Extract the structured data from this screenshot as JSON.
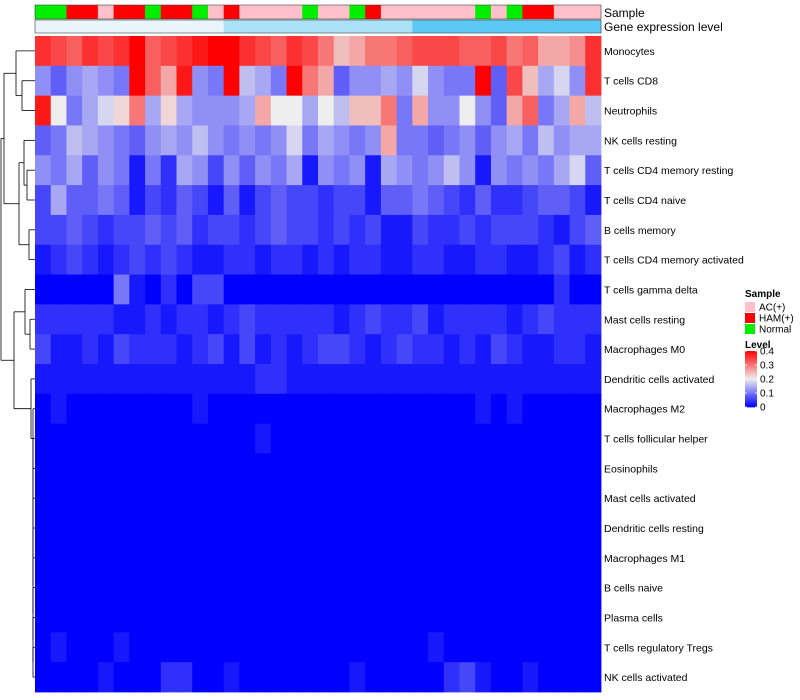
{
  "chart_data": {
    "type": "heatmap",
    "title": "",
    "annotation_labels": {
      "sample": "Sample",
      "expression": "Gene expression level"
    },
    "rows": [
      "Monocytes",
      "T cells CD8",
      "Neutrophils",
      "NK cells resting",
      "T cells CD4 memory resting",
      "T cells CD4 naive",
      "B cells memory",
      "T cells CD4 memory activated",
      "T cells gamma delta",
      "Mast cells resting",
      "Macrophages M0",
      "Dendritic cells activated",
      "Macrophages M2",
      "T cells follicular helper",
      "Eosinophils",
      "Mast cells activated",
      "Dendritic cells resting",
      "Macrophages M1",
      "B cells naive",
      "Plasma cells",
      "T cells regulatory  Tregs",
      "NK cells activated"
    ],
    "sample_groups": [
      "Normal",
      "Normal",
      "HAM(+)",
      "HAM(+)",
      "AC(+)",
      "HAM(+)",
      "HAM(+)",
      "Normal",
      "HAM(+)",
      "HAM(+)",
      "Normal",
      "AC(+)",
      "HAM(+)",
      "AC(+)",
      "AC(+)",
      "AC(+)",
      "AC(+)",
      "Normal",
      "AC(+)",
      "AC(+)",
      "Normal",
      "HAM(+)",
      "AC(+)",
      "AC(+)",
      "AC(+)",
      "AC(+)",
      "AC(+)",
      "AC(+)",
      "Normal",
      "AC(+)",
      "Normal",
      "HAM(+)",
      "HAM(+)",
      "AC(+)",
      "AC(+)",
      "AC(+)"
    ],
    "expression_row": [
      0.05,
      0.05,
      0.05,
      0.05,
      0.05,
      0.05,
      0.05,
      0.05,
      0.05,
      0.05,
      0.05,
      0.05,
      0.18,
      0.18,
      0.18,
      0.18,
      0.18,
      0.18,
      0.18,
      0.18,
      0.18,
      0.18,
      0.18,
      0.18,
      0.35,
      0.35,
      0.35,
      0.35,
      0.35,
      0.35,
      0.35,
      0.35,
      0.35,
      0.35,
      0.35,
      0.35
    ],
    "values": [
      [
        0.36,
        0.34,
        0.32,
        0.36,
        0.34,
        0.36,
        0.4,
        0.32,
        0.34,
        0.36,
        0.38,
        0.4,
        0.4,
        0.36,
        0.34,
        0.32,
        0.36,
        0.34,
        0.3,
        0.24,
        0.26,
        0.3,
        0.3,
        0.32,
        0.34,
        0.34,
        0.34,
        0.32,
        0.32,
        0.34,
        0.3,
        0.32,
        0.26,
        0.26,
        0.28,
        0.36
      ],
      [
        0.12,
        0.08,
        0.12,
        0.14,
        0.12,
        0.1,
        0.4,
        0.32,
        0.26,
        0.38,
        0.12,
        0.1,
        0.4,
        0.16,
        0.14,
        0.1,
        0.4,
        0.3,
        0.26,
        0.08,
        0.12,
        0.12,
        0.14,
        0.12,
        0.18,
        0.12,
        0.1,
        0.1,
        0.4,
        0.08,
        0.34,
        0.24,
        0.14,
        0.18,
        0.12,
        0.36
      ],
      [
        0.38,
        0.2,
        0.1,
        0.14,
        0.18,
        0.22,
        0.3,
        0.14,
        0.22,
        0.14,
        0.12,
        0.12,
        0.12,
        0.14,
        0.26,
        0.2,
        0.2,
        0.14,
        0.2,
        0.16,
        0.24,
        0.24,
        0.3,
        0.1,
        0.26,
        0.12,
        0.12,
        0.2,
        0.12,
        0.08,
        0.26,
        0.32,
        0.1,
        0.14,
        0.26,
        0.16
      ],
      [
        0.08,
        0.1,
        0.16,
        0.14,
        0.12,
        0.1,
        0.08,
        0.12,
        0.14,
        0.12,
        0.16,
        0.12,
        0.1,
        0.12,
        0.1,
        0.12,
        0.18,
        0.1,
        0.14,
        0.12,
        0.1,
        0.12,
        0.26,
        0.1,
        0.1,
        0.08,
        0.1,
        0.12,
        0.08,
        0.12,
        0.14,
        0.1,
        0.16,
        0.12,
        0.14,
        0.14
      ],
      [
        0.12,
        0.1,
        0.14,
        0.08,
        0.12,
        0.1,
        0.02,
        0.1,
        0.04,
        0.14,
        0.12,
        0.06,
        0.12,
        0.08,
        0.12,
        0.1,
        0.14,
        0.02,
        0.12,
        0.1,
        0.12,
        0.02,
        0.14,
        0.12,
        0.1,
        0.12,
        0.16,
        0.12,
        0.02,
        0.12,
        0.1,
        0.12,
        0.1,
        0.14,
        0.18,
        0.08
      ],
      [
        0.06,
        0.14,
        0.08,
        0.08,
        0.1,
        0.08,
        0.02,
        0.06,
        0.04,
        0.08,
        0.06,
        0.02,
        0.08,
        0.02,
        0.06,
        0.08,
        0.06,
        0.06,
        0.04,
        0.06,
        0.06,
        0.02,
        0.08,
        0.08,
        0.1,
        0.08,
        0.06,
        0.04,
        0.08,
        0.04,
        0.04,
        0.06,
        0.08,
        0.08,
        0.06,
        0.02
      ],
      [
        0.06,
        0.06,
        0.08,
        0.06,
        0.04,
        0.06,
        0.06,
        0.08,
        0.06,
        0.08,
        0.04,
        0.06,
        0.06,
        0.04,
        0.06,
        0.08,
        0.06,
        0.06,
        0.04,
        0.06,
        0.04,
        0.06,
        0.02,
        0.02,
        0.06,
        0.04,
        0.04,
        0.06,
        0.04,
        0.06,
        0.06,
        0.06,
        0.04,
        0.02,
        0.06,
        0.08
      ],
      [
        0.02,
        0.04,
        0.06,
        0.04,
        0.02,
        0.04,
        0.06,
        0.04,
        0.06,
        0.04,
        0.02,
        0.02,
        0.04,
        0.04,
        0.02,
        0.04,
        0.04,
        0.02,
        0.04,
        0.02,
        0.04,
        0.04,
        0.02,
        0.02,
        0.04,
        0.04,
        0.02,
        0.02,
        0.04,
        0.04,
        0.02,
        0.02,
        0.04,
        0.06,
        0.02,
        0.04
      ],
      [
        0.0,
        0.0,
        0.0,
        0.0,
        0.0,
        0.1,
        0.02,
        0.0,
        0.04,
        0.0,
        0.06,
        0.06,
        0.0,
        0.0,
        0.0,
        0.0,
        0.0,
        0.0,
        0.0,
        0.0,
        0.0,
        0.0,
        0.0,
        0.0,
        0.0,
        0.0,
        0.0,
        0.0,
        0.0,
        0.0,
        0.0,
        0.0,
        0.0,
        0.04,
        0.0,
        0.0
      ],
      [
        0.04,
        0.04,
        0.04,
        0.04,
        0.04,
        0.02,
        0.02,
        0.04,
        0.02,
        0.04,
        0.04,
        0.02,
        0.04,
        0.06,
        0.04,
        0.04,
        0.04,
        0.04,
        0.04,
        0.02,
        0.04,
        0.06,
        0.04,
        0.04,
        0.06,
        0.02,
        0.04,
        0.04,
        0.04,
        0.04,
        0.02,
        0.04,
        0.06,
        0.04,
        0.04,
        0.04
      ],
      [
        0.06,
        0.02,
        0.02,
        0.04,
        0.02,
        0.06,
        0.04,
        0.04,
        0.04,
        0.02,
        0.04,
        0.06,
        0.02,
        0.06,
        0.02,
        0.04,
        0.02,
        0.04,
        0.06,
        0.06,
        0.04,
        0.02,
        0.04,
        0.06,
        0.04,
        0.04,
        0.02,
        0.04,
        0.02,
        0.06,
        0.04,
        0.02,
        0.02,
        0.04,
        0.04,
        0.02
      ],
      [
        0.02,
        0.02,
        0.02,
        0.02,
        0.02,
        0.02,
        0.02,
        0.02,
        0.02,
        0.02,
        0.02,
        0.02,
        0.02,
        0.02,
        0.04,
        0.04,
        0.02,
        0.02,
        0.02,
        0.02,
        0.02,
        0.02,
        0.02,
        0.02,
        0.02,
        0.02,
        0.02,
        0.02,
        0.02,
        0.02,
        0.02,
        0.02,
        0.02,
        0.02,
        0.02,
        0.02
      ],
      [
        0.0,
        0.02,
        0.0,
        0.0,
        0.0,
        0.0,
        0.0,
        0.0,
        0.0,
        0.0,
        0.02,
        0.0,
        0.0,
        0.0,
        0.0,
        0.0,
        0.0,
        0.0,
        0.0,
        0.0,
        0.0,
        0.0,
        0.0,
        0.0,
        0.0,
        0.0,
        0.0,
        0.0,
        0.02,
        0.0,
        0.02,
        0.0,
        0.0,
        0.0,
        0.0,
        0.0
      ],
      [
        0.0,
        0.0,
        0.0,
        0.0,
        0.0,
        0.0,
        0.0,
        0.0,
        0.0,
        0.0,
        0.0,
        0.0,
        0.0,
        0.0,
        0.02,
        0.0,
        0.0,
        0.0,
        0.0,
        0.0,
        0.0,
        0.0,
        0.0,
        0.0,
        0.0,
        0.0,
        0.0,
        0.0,
        0.0,
        0.0,
        0.0,
        0.0,
        0.0,
        0.0,
        0.0,
        0.0
      ],
      [
        0.0,
        0.0,
        0.0,
        0.0,
        0.0,
        0.0,
        0.0,
        0.0,
        0.0,
        0.0,
        0.0,
        0.0,
        0.0,
        0.0,
        0.0,
        0.0,
        0.0,
        0.0,
        0.0,
        0.0,
        0.0,
        0.0,
        0.0,
        0.0,
        0.0,
        0.0,
        0.0,
        0.0,
        0.0,
        0.0,
        0.0,
        0.0,
        0.0,
        0.0,
        0.0,
        0.0
      ],
      [
        0.0,
        0.0,
        0.0,
        0.0,
        0.0,
        0.0,
        0.0,
        0.0,
        0.0,
        0.0,
        0.0,
        0.0,
        0.0,
        0.0,
        0.0,
        0.0,
        0.0,
        0.0,
        0.0,
        0.0,
        0.0,
        0.0,
        0.0,
        0.0,
        0.0,
        0.0,
        0.0,
        0.0,
        0.0,
        0.0,
        0.0,
        0.0,
        0.0,
        0.0,
        0.0,
        0.0
      ],
      [
        0.0,
        0.0,
        0.0,
        0.0,
        0.0,
        0.0,
        0.0,
        0.0,
        0.0,
        0.0,
        0.0,
        0.0,
        0.0,
        0.0,
        0.0,
        0.0,
        0.0,
        0.0,
        0.0,
        0.0,
        0.0,
        0.0,
        0.0,
        0.0,
        0.0,
        0.0,
        0.0,
        0.0,
        0.0,
        0.0,
        0.0,
        0.0,
        0.0,
        0.0,
        0.0,
        0.0
      ],
      [
        0.0,
        0.0,
        0.0,
        0.0,
        0.0,
        0.0,
        0.0,
        0.0,
        0.0,
        0.0,
        0.0,
        0.0,
        0.0,
        0.0,
        0.0,
        0.0,
        0.0,
        0.0,
        0.0,
        0.0,
        0.0,
        0.0,
        0.0,
        0.0,
        0.0,
        0.0,
        0.0,
        0.0,
        0.0,
        0.0,
        0.0,
        0.0,
        0.0,
        0.0,
        0.0,
        0.0
      ],
      [
        0.0,
        0.0,
        0.0,
        0.0,
        0.0,
        0.0,
        0.0,
        0.0,
        0.0,
        0.0,
        0.0,
        0.0,
        0.0,
        0.0,
        0.0,
        0.0,
        0.0,
        0.0,
        0.0,
        0.0,
        0.0,
        0.0,
        0.0,
        0.0,
        0.0,
        0.0,
        0.0,
        0.0,
        0.0,
        0.0,
        0.0,
        0.0,
        0.0,
        0.0,
        0.0,
        0.0
      ],
      [
        0.0,
        0.0,
        0.0,
        0.0,
        0.0,
        0.0,
        0.0,
        0.0,
        0.0,
        0.0,
        0.0,
        0.0,
        0.0,
        0.0,
        0.0,
        0.0,
        0.0,
        0.0,
        0.0,
        0.0,
        0.0,
        0.0,
        0.0,
        0.0,
        0.0,
        0.0,
        0.0,
        0.0,
        0.0,
        0.0,
        0.0,
        0.0,
        0.0,
        0.0,
        0.0,
        0.0
      ],
      [
        0.0,
        0.02,
        0.0,
        0.0,
        0.0,
        0.02,
        0.0,
        0.0,
        0.0,
        0.0,
        0.0,
        0.0,
        0.0,
        0.0,
        0.0,
        0.0,
        0.0,
        0.0,
        0.0,
        0.0,
        0.0,
        0.0,
        0.0,
        0.0,
        0.0,
        0.02,
        0.0,
        0.0,
        0.0,
        0.0,
        0.0,
        0.0,
        0.0,
        0.0,
        0.0,
        0.0
      ],
      [
        0.0,
        0.0,
        0.0,
        0.0,
        0.02,
        0.0,
        0.0,
        0.0,
        0.04,
        0.04,
        0.0,
        0.0,
        0.02,
        0.0,
        0.0,
        0.0,
        0.0,
        0.0,
        0.0,
        0.0,
        0.02,
        0.0,
        0.0,
        0.0,
        0.0,
        0.0,
        0.04,
        0.06,
        0.02,
        0.0,
        0.0,
        0.02,
        0.0,
        0.0,
        0.0,
        0.0
      ]
    ],
    "legend": {
      "sample_title": "Sample",
      "sample_entries": [
        {
          "label": "AC(+)",
          "color": "#ffc0cb"
        },
        {
          "label": "HAM(+)",
          "color": "#ff0000"
        },
        {
          "label": "Normal",
          "color": "#00ee00"
        }
      ],
      "level_title": "Level",
      "level_ticks": [
        {
          "value": 0.4,
          "label": "0.4"
        },
        {
          "value": 0.3,
          "label": "0.3"
        },
        {
          "value": 0.2,
          "label": "0.2"
        },
        {
          "value": 0.1,
          "label": "0.1"
        },
        {
          "value": 0,
          "label": "0"
        }
      ],
      "level_range": [
        0,
        0.4
      ]
    },
    "colors": {
      "low": "#0000ff",
      "mid": "#eeeeee",
      "high": "#ff0000",
      "expr_low": "#e8f6fb",
      "expr_high": "#5bc8f5"
    }
  }
}
